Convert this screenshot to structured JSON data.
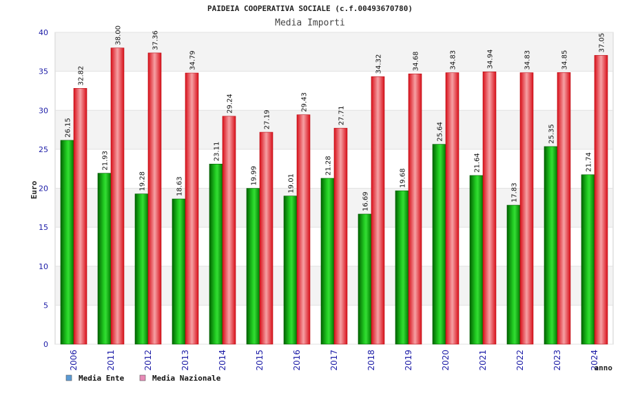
{
  "chart_data": {
    "type": "bar",
    "title": "PAIDEIA COOPERATIVA SOCIALE (c.f.00493670780)",
    "subtitle": "Media Importi",
    "ylabel": "Euro",
    "xlabel": "anno",
    "ylim": [
      0,
      40
    ],
    "yticks": [
      0,
      5,
      10,
      15,
      20,
      25,
      30,
      35,
      40
    ],
    "grid": true,
    "legend_position": "bottom-left",
    "categories": [
      "2006",
      "2011",
      "2012",
      "2013",
      "2014",
      "2015",
      "2016",
      "2017",
      "2018",
      "2019",
      "2020",
      "2021",
      "2022",
      "2023",
      "2024"
    ],
    "series": [
      {
        "name": "Media Ente",
        "color": "#0a9a0a",
        "legend_color": "#5b9bd5",
        "values": [
          26.15,
          21.93,
          19.28,
          18.63,
          23.11,
          19.99,
          19.01,
          21.28,
          16.69,
          19.68,
          25.64,
          21.64,
          17.83,
          25.35,
          21.74
        ],
        "labels": [
          "26.15",
          "21.93",
          "19.28",
          "18.63",
          "23.11",
          "19.99",
          "19.01",
          "21.28",
          "16.69",
          "19.68",
          "25.64",
          "21.64",
          "17.83",
          "25.35",
          "21.74"
        ]
      },
      {
        "name": "Media Nazionale",
        "color": "#e41b23",
        "legend_color": "#e88bb7",
        "values": [
          32.82,
          38.0,
          37.36,
          34.79,
          29.24,
          27.19,
          29.43,
          27.71,
          34.32,
          34.68,
          34.83,
          34.94,
          34.83,
          34.85,
          37.05
        ],
        "labels": [
          "32.82",
          "38.00",
          "37.36",
          "34.79",
          "29.24",
          "27.19",
          "29.43",
          "27.71",
          "34.32",
          "34.68",
          "34.83",
          "34.94",
          "34.83",
          "34.85",
          "37.05"
        ]
      }
    ]
  }
}
